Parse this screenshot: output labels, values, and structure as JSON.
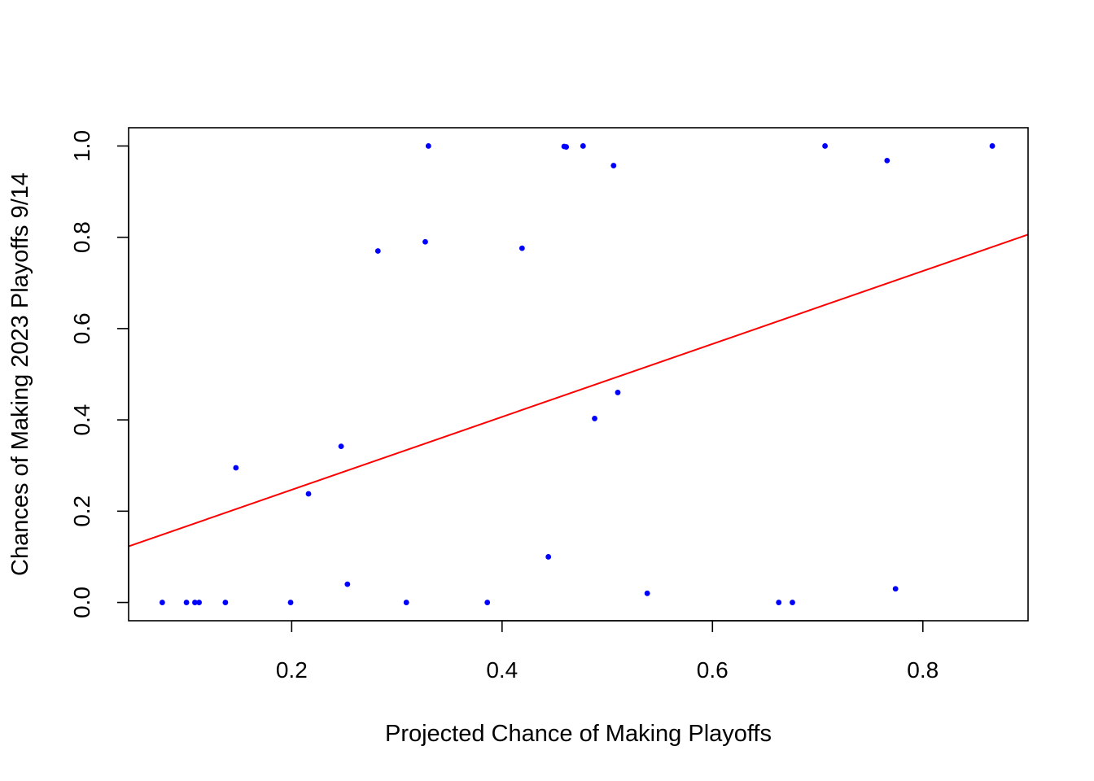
{
  "chart_data": {
    "type": "scatter",
    "title": "",
    "xlabel": "Projected Chance of Making Playoffs",
    "ylabel": "Chances of Making 2023 Playoffs 9/14",
    "xlim": [
      0.045,
      0.9
    ],
    "ylim": [
      -0.04,
      1.04
    ],
    "xticks": [
      {
        "value": 0.2,
        "label": "0.2"
      },
      {
        "value": 0.4,
        "label": "0.4"
      },
      {
        "value": 0.6,
        "label": "0.6"
      },
      {
        "value": 0.8,
        "label": "0.8"
      }
    ],
    "yticks": [
      {
        "value": 0.0,
        "label": "0.0"
      },
      {
        "value": 0.2,
        "label": "0.2"
      },
      {
        "value": 0.4,
        "label": "0.4"
      },
      {
        "value": 0.6,
        "label": "0.6"
      },
      {
        "value": 0.8,
        "label": "0.8"
      },
      {
        "value": 1.0,
        "label": "1.0"
      }
    ],
    "grid": false,
    "legend": "none",
    "point_color": "#0000FF",
    "line_color": "#FF0000",
    "points": [
      {
        "x": 0.077,
        "y": 0.0
      },
      {
        "x": 0.1,
        "y": 0.0
      },
      {
        "x": 0.108,
        "y": 0.0
      },
      {
        "x": 0.112,
        "y": 0.0
      },
      {
        "x": 0.137,
        "y": 0.0
      },
      {
        "x": 0.147,
        "y": 0.295
      },
      {
        "x": 0.199,
        "y": 0.0
      },
      {
        "x": 0.216,
        "y": 0.238
      },
      {
        "x": 0.247,
        "y": 0.342
      },
      {
        "x": 0.253,
        "y": 0.04
      },
      {
        "x": 0.282,
        "y": 0.77
      },
      {
        "x": 0.309,
        "y": 0.0
      },
      {
        "x": 0.327,
        "y": 0.79
      },
      {
        "x": 0.33,
        "y": 1.0
      },
      {
        "x": 0.386,
        "y": 0.0
      },
      {
        "x": 0.419,
        "y": 0.776
      },
      {
        "x": 0.444,
        "y": 0.1
      },
      {
        "x": 0.459,
        "y": 0.999
      },
      {
        "x": 0.461,
        "y": 0.998
      },
      {
        "x": 0.477,
        "y": 1.0
      },
      {
        "x": 0.488,
        "y": 0.403
      },
      {
        "x": 0.506,
        "y": 0.957
      },
      {
        "x": 0.51,
        "y": 0.46
      },
      {
        "x": 0.538,
        "y": 0.02
      },
      {
        "x": 0.663,
        "y": 0.0
      },
      {
        "x": 0.676,
        "y": 0.0
      },
      {
        "x": 0.707,
        "y": 1.0
      },
      {
        "x": 0.766,
        "y": 0.968
      },
      {
        "x": 0.774,
        "y": 0.03
      },
      {
        "x": 0.866,
        "y": 1.0
      }
    ],
    "fit_line": {
      "x": [
        0.045,
        0.9
      ],
      "y": [
        0.123,
        0.806
      ]
    }
  }
}
